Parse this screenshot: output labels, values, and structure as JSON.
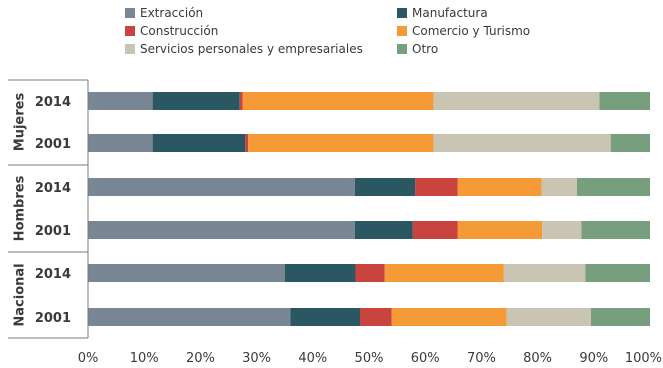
{
  "chart_data": {
    "type": "bar",
    "orientation": "horizontal",
    "stacked": true,
    "percent": true,
    "title": "",
    "xlabel": "",
    "ylabel": "",
    "xlim": [
      0,
      100
    ],
    "xticks": [
      "0%",
      "10%",
      "20%",
      "30%",
      "40%",
      "50%",
      "60%",
      "70%",
      "80%",
      "90%",
      "100%"
    ],
    "legend_position": "top",
    "groups": [
      {
        "name": "Mujeres",
        "categories": [
          "2014",
          "2001"
        ]
      },
      {
        "name": "Hombres",
        "categories": [
          "2014",
          "2001"
        ]
      },
      {
        "name": "Nacional",
        "categories": [
          "2014",
          "2001"
        ]
      }
    ],
    "categories": [
      "Mujeres 2014",
      "Mujeres 2001",
      "Hombres 2014",
      "Hombres 2001",
      "Nacional 2014",
      "Nacional 2001"
    ],
    "series": [
      {
        "name": "Extracción",
        "color": "#798795",
        "values": [
          11.5,
          11.5,
          47.5,
          47.5,
          35.0,
          36.0
        ]
      },
      {
        "name": "Manufactura",
        "color": "#2b5763",
        "values": [
          15.5,
          16.5,
          10.7,
          10.3,
          12.6,
          12.4
        ]
      },
      {
        "name": "Construcción",
        "color": "#c9433f",
        "values": [
          0.5,
          0.5,
          7.6,
          8.0,
          5.2,
          5.6
        ]
      },
      {
        "name": "Comercio y Turismo",
        "color": "#f49a36",
        "values": [
          34.0,
          33.0,
          14.9,
          15.0,
          21.2,
          20.5
        ]
      },
      {
        "name": "Servicios personales y empresariales",
        "color": "#cac5b3",
        "values": [
          29.5,
          31.5,
          6.3,
          7.0,
          14.5,
          15.0
        ]
      },
      {
        "name": "Otro",
        "color": "#779f7e",
        "values": [
          9.0,
          7.0,
          13.0,
          12.2,
          11.5,
          10.5
        ]
      }
    ]
  }
}
